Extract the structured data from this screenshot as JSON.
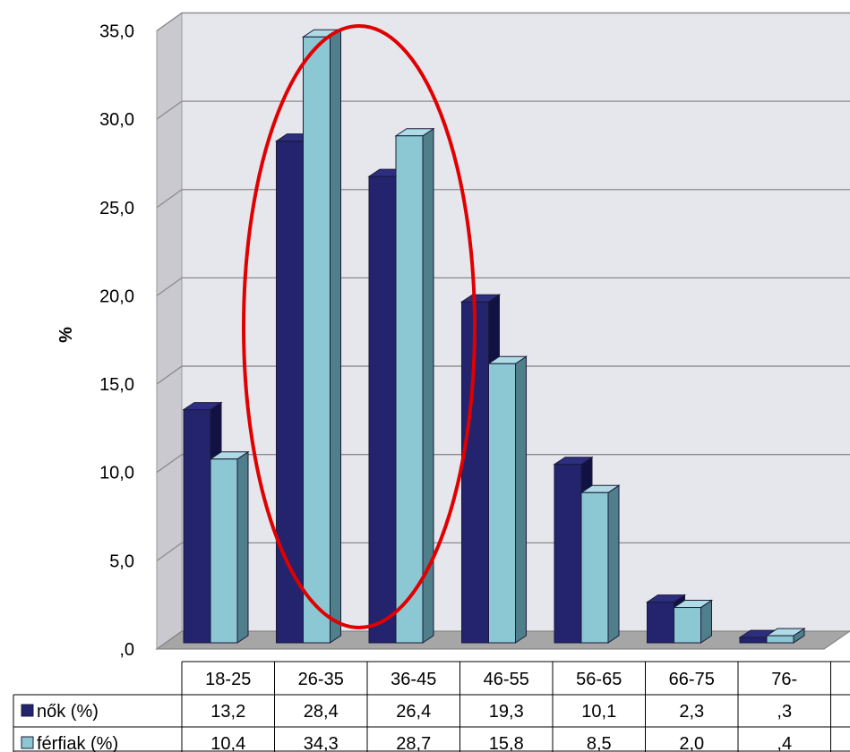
{
  "chart_data": {
    "type": "bar",
    "ylabel": "%",
    "ylim": [
      0,
      35
    ],
    "y_ticks": [
      "35,0",
      "30,0",
      "25,0",
      "20,0",
      "15,0",
      "10,0",
      "5,0",
      ",0"
    ],
    "y_tick_values": [
      35,
      30,
      25,
      20,
      15,
      10,
      5,
      0
    ],
    "categories": [
      "18-25",
      "26-35",
      "36-45",
      "46-55",
      "56-65",
      "66-75",
      "76-"
    ],
    "series": [
      {
        "name": "nők (%)",
        "values": [
          13.2,
          28.4,
          26.4,
          19.3,
          10.1,
          2.3,
          0.3
        ],
        "labels": [
          "13,2",
          "28,4",
          "26,4",
          "19,3",
          "10,1",
          "2,3",
          ",3"
        ],
        "color": "#23236e",
        "side_color": "#111144",
        "top_color": "#2e2e80"
      },
      {
        "name": "férfiak (%)",
        "values": [
          10.4,
          34.3,
          28.7,
          15.8,
          8.5,
          2.0,
          0.4
        ],
        "labels": [
          "10,4",
          "34,3",
          "28,7",
          "15,8",
          "8,5",
          "2,0",
          ",4"
        ],
        "color": "#8cc8d4",
        "side_color": "#4e7f8a",
        "top_color": "#aedbe4"
      }
    ],
    "grid": true,
    "data_table": true,
    "annotation": {
      "shape": "ellipse",
      "color": "#e00000",
      "highlights": [
        "26-35",
        "36-45"
      ]
    },
    "colors": {
      "wall": "#e6e6ed",
      "floor": "#a6a6a6",
      "grid": "#8c8c8c",
      "annotation": "#e00000"
    }
  }
}
